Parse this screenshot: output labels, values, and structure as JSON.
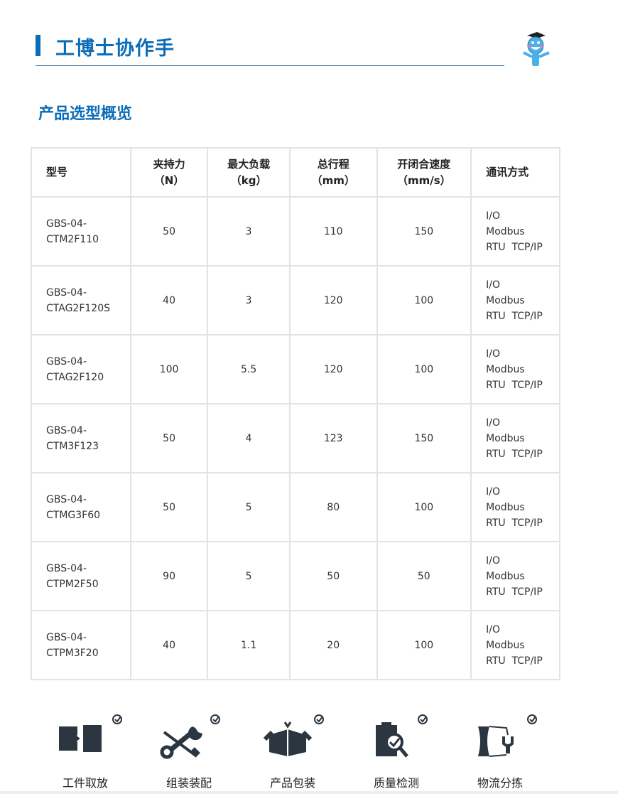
{
  "header": {
    "brand": "工博士协作手",
    "accent": "#0b6cb8"
  },
  "section_title": "产品选型概览",
  "table": {
    "headers": [
      [
        "型号",
        ""
      ],
      [
        "夹持力",
        "（N）"
      ],
      [
        "最大负载",
        "（kg）"
      ],
      [
        "总行程",
        "（mm）"
      ],
      [
        "开闭合速度",
        "（mm/s）"
      ],
      [
        "通讯方式",
        ""
      ]
    ],
    "rows": [
      [
        "GBS-04-",
        "CTM2F110",
        "50",
        "3",
        "110",
        "150"
      ],
      [
        "GBS-04-",
        "CTAG2F120S",
        "40",
        "3",
        "120",
        "100"
      ],
      [
        "GBS-04-",
        "CTAG2F120",
        "100",
        "5.5",
        "120",
        "100"
      ],
      [
        "GBS-04-",
        "CTM3F123",
        "50",
        "4",
        "123",
        "150"
      ],
      [
        "GBS-04-",
        "CTMG3F60",
        "50",
        "5",
        "80",
        "100"
      ],
      [
        "GBS-04-",
        "CTPM2F50",
        "90",
        "5",
        "50",
        "50"
      ],
      [
        "GBS-04-",
        "CTPM3F20",
        "40",
        "1.1",
        "20",
        "100"
      ]
    ],
    "comm": [
      "I/O",
      "Modbus",
      "RTU  TCP/IP"
    ]
  },
  "applications": [
    {
      "label": "工件取放",
      "icon": "pick-place-icon"
    },
    {
      "label": "组装装配",
      "icon": "tools-icon"
    },
    {
      "label": "产品包装",
      "icon": "box-icon"
    },
    {
      "label": "质量检测",
      "icon": "inspection-icon"
    },
    {
      "label": "物流分拣",
      "icon": "sorting-icon"
    }
  ]
}
